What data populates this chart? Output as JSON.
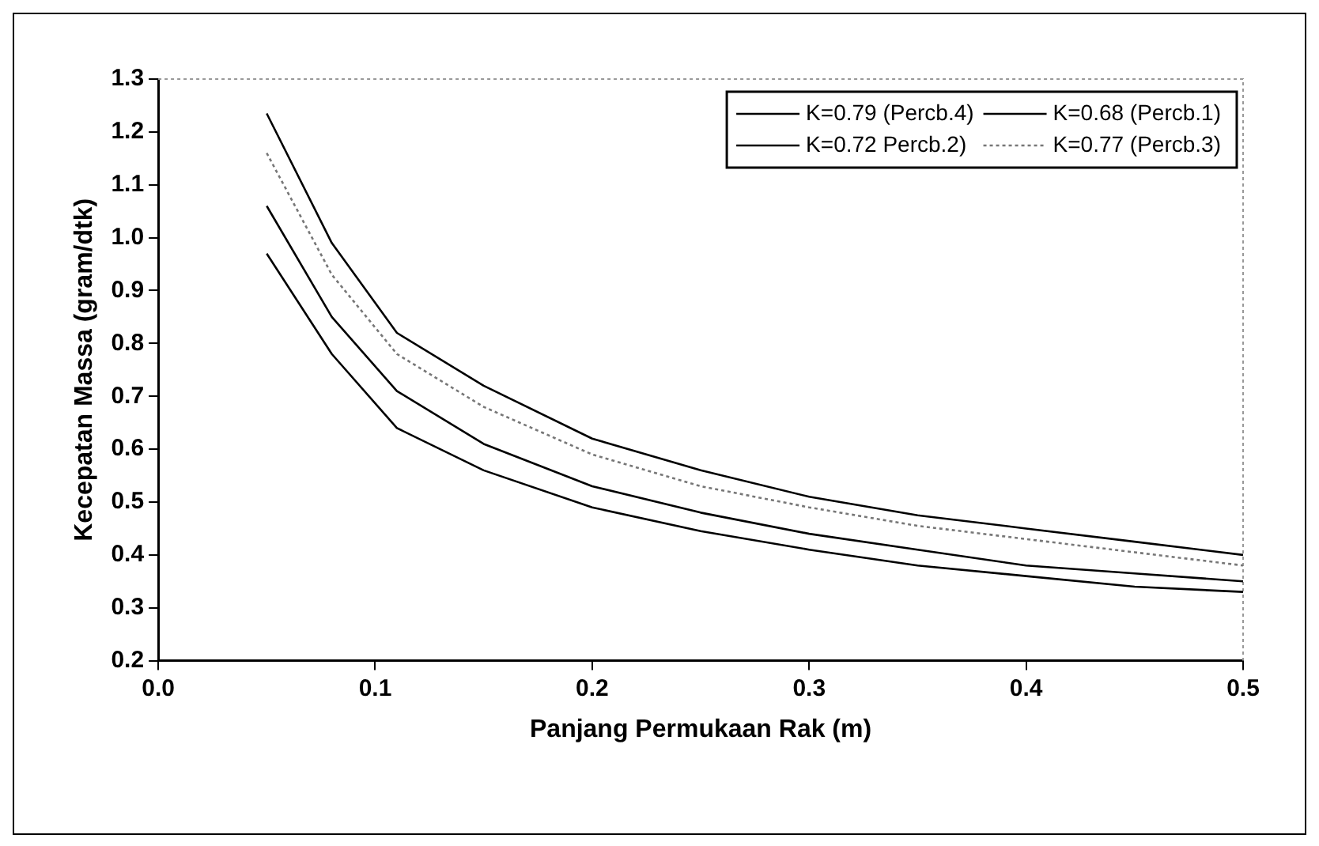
{
  "chart_data": {
    "type": "line",
    "xlabel": "Panjang Permukaan Rak (m)",
    "ylabel": "Kecepatan Massa (gram/dtk)",
    "x": [
      0.05,
      0.08,
      0.11,
      0.15,
      0.2,
      0.25,
      0.3,
      0.35,
      0.4,
      0.45,
      0.5
    ],
    "series": [
      {
        "name": "K=0.79 (Percb.4)",
        "color": "#000000",
        "line_style": "solid",
        "values": [
          1.235,
          0.99,
          0.82,
          0.72,
          0.62,
          0.56,
          0.51,
          0.475,
          0.45,
          0.425,
          0.4
        ]
      },
      {
        "name": "K=0.68 (Percb.1)",
        "color": "#000000",
        "line_style": "solid",
        "values": [
          0.97,
          0.78,
          0.64,
          0.56,
          0.49,
          0.445,
          0.41,
          0.38,
          0.36,
          0.34,
          0.33
        ]
      },
      {
        "name": "K=0.72 Percb.2)",
        "color": "#000000",
        "line_style": "solid",
        "values": [
          1.06,
          0.85,
          0.71,
          0.61,
          0.53,
          0.48,
          0.44,
          0.41,
          0.38,
          0.365,
          0.35
        ]
      },
      {
        "name": "K=0.77 (Percb.3)",
        "color": "#777777",
        "line_style": "dotted",
        "values": [
          1.16,
          0.93,
          0.78,
          0.68,
          0.59,
          0.53,
          0.49,
          0.455,
          0.43,
          0.405,
          0.38
        ]
      }
    ],
    "xlim": [
      0,
      0.5
    ],
    "xticks": [
      {
        "value": 0,
        "label": "0.0"
      },
      0.1,
      0.2,
      0.3,
      0.4,
      0.5
    ],
    "ylim": [
      0.2,
      1.3
    ],
    "yticks": [
      0.2,
      0.3,
      0.4,
      0.5,
      0.6,
      0.7,
      0.8,
      0.9,
      {
        "value": 1,
        "label": "1.0"
      },
      1.1,
      1.2,
      1.3
    ],
    "grid": false,
    "legend": "top right",
    "marker": "none"
  }
}
